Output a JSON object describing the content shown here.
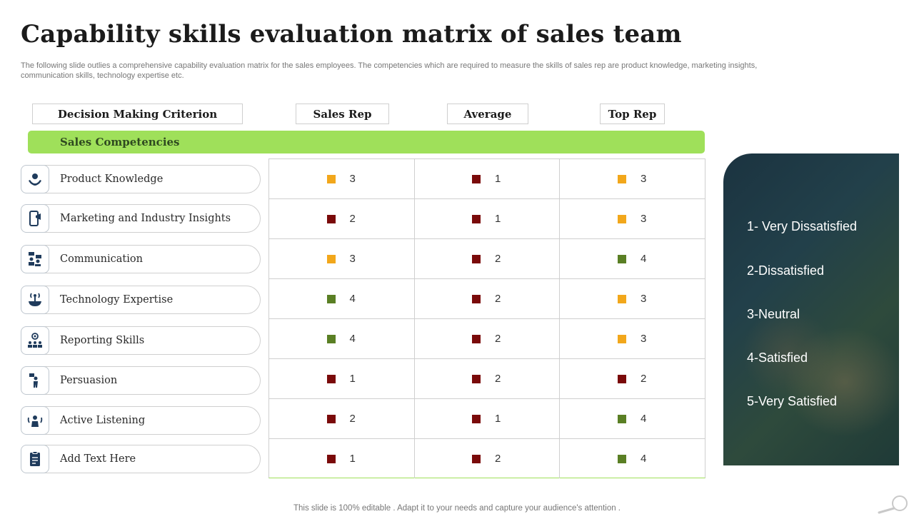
{
  "title": "Capability skills evaluation matrix of sales team",
  "subtitle": "The following slide outlies a comprehensive capability evaluation matrix for the sales employees. The competencies which are required to measure the skills of sales rep are product knowledge, marketing insights, communication skills, technology expertise etc.",
  "headers": {
    "criterion": "Decision Making Criterion",
    "sales_rep": "Sales Rep",
    "average": "Average",
    "top_rep": "Top Rep"
  },
  "section_label": "Sales Competencies",
  "colors": {
    "low": "#7a0a0a",
    "neutral": "#f2a71b",
    "high": "#5a7f24",
    "accent_green": "#9fe05a",
    "icon_navy": "#1f3b5c"
  },
  "rows": [
    {
      "label": "Product Knowledge",
      "icon": "idea-hands-icon",
      "cells": [
        {
          "value": "3",
          "color": "#f2a71b"
        },
        {
          "value": "1",
          "color": "#7a0a0a"
        },
        {
          "value": "3",
          "color": "#f2a71b"
        }
      ]
    },
    {
      "label": "Marketing and Industry Insights",
      "icon": "mobile-megaphone-icon",
      "cells": [
        {
          "value": "2",
          "color": "#7a0a0a"
        },
        {
          "value": "1",
          "color": "#7a0a0a"
        },
        {
          "value": "3",
          "color": "#f2a71b"
        }
      ]
    },
    {
      "label": "Communication",
      "icon": "people-chat-icon",
      "cells": [
        {
          "value": "3",
          "color": "#f2a71b"
        },
        {
          "value": "2",
          "color": "#7a0a0a"
        },
        {
          "value": "4",
          "color": "#5a7f24"
        }
      ]
    },
    {
      "label": "Technology Expertise",
      "icon": "antenna-globe-icon",
      "cells": [
        {
          "value": "4",
          "color": "#5a7f24"
        },
        {
          "value": "2",
          "color": "#7a0a0a"
        },
        {
          "value": "3",
          "color": "#f2a71b"
        }
      ]
    },
    {
      "label": "Reporting Skills",
      "icon": "target-team-icon",
      "cells": [
        {
          "value": "4",
          "color": "#5a7f24"
        },
        {
          "value": "2",
          "color": "#7a0a0a"
        },
        {
          "value": "3",
          "color": "#f2a71b"
        }
      ]
    },
    {
      "label": "Persuasion",
      "icon": "person-presenting-icon",
      "cells": [
        {
          "value": "1",
          "color": "#7a0a0a"
        },
        {
          "value": "2",
          "color": "#7a0a0a"
        },
        {
          "value": "2",
          "color": "#7a0a0a"
        }
      ]
    },
    {
      "label": "Active Listening",
      "icon": "listening-group-icon",
      "cells": [
        {
          "value": "2",
          "color": "#7a0a0a"
        },
        {
          "value": "1",
          "color": "#7a0a0a"
        },
        {
          "value": "4",
          "color": "#5a7f24"
        }
      ]
    },
    {
      "label": "Add Text Here",
      "icon": "clipboard-icon",
      "cells": [
        {
          "value": "1",
          "color": "#7a0a0a"
        },
        {
          "value": "2",
          "color": "#7a0a0a"
        },
        {
          "value": "4",
          "color": "#5a7f24"
        }
      ]
    }
  ],
  "legend": [
    "1- Very Dissatisfied",
    "2-Dissatisfied",
    "3-Neutral",
    "4-Satisfied",
    "5-Very Satisfied"
  ],
  "footer": "This slide is 100% editable . Adapt it to your needs and capture your audience's attention ."
}
